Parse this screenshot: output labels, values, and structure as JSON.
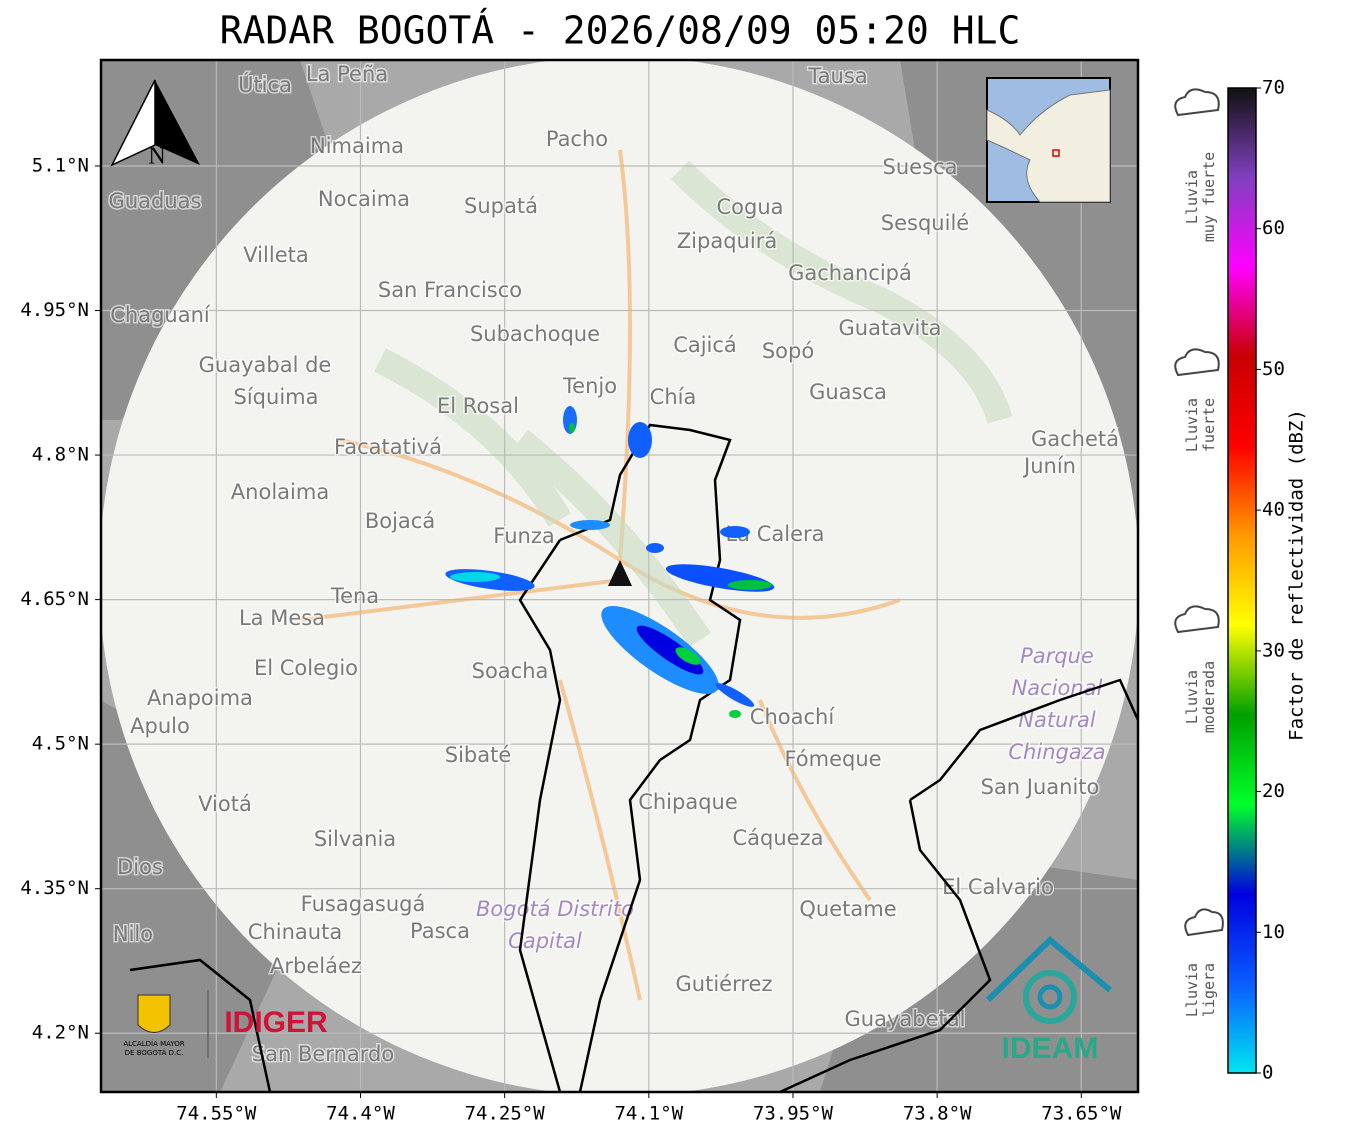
{
  "title": "RADAR BOGOTÁ - 2026/08/09 05:20 HLC",
  "map": {
    "xlim": [
      -74.67,
      -73.591
    ],
    "ylim": [
      4.139,
      5.21
    ],
    "grid": true,
    "xticks": [
      {
        "value": -74.55,
        "label": "74.55°W"
      },
      {
        "value": -74.4,
        "label": "74.4°W"
      },
      {
        "value": -74.25,
        "label": "74.25°W"
      },
      {
        "value": -74.1,
        "label": "74.1°W"
      },
      {
        "value": -73.95,
        "label": "73.95°W"
      },
      {
        "value": -73.8,
        "label": "73.8°W"
      },
      {
        "value": -73.65,
        "label": "73.65°W"
      }
    ],
    "yticks": [
      {
        "value": 5.1,
        "label": "5.1°N"
      },
      {
        "value": 4.95,
        "label": "4.95°N"
      },
      {
        "value": 4.8,
        "label": "4.8°N"
      },
      {
        "value": 4.65,
        "label": "4.65°N"
      },
      {
        "value": 4.5,
        "label": "4.5°N"
      },
      {
        "value": 4.35,
        "label": "4.35°N"
      },
      {
        "value": 4.2,
        "label": "4.2°N"
      }
    ],
    "compass": "N",
    "places": [
      "La Peña",
      "Útica",
      "Tausa",
      "Pacho",
      "Nimaima",
      "Guaduas",
      "Nocaima",
      "Supatá",
      "Cogua",
      "Suesca",
      "Sesquilé",
      "Villeta",
      "Zipaquirá",
      "Gachancipá",
      "San Francisco",
      "Chaguaní",
      "Guatavita",
      "Subachoque",
      "Cajicá",
      "Sopó",
      "Guayabal de",
      "Síquima",
      "Tenjo",
      "Chía",
      "Guasca",
      "El Rosal",
      "Facatativá",
      "Gachetá",
      "Junín",
      "Anolaima",
      "Bojacá",
      "Funza",
      "La Calera",
      "Tena",
      "La Mesa",
      "Parque",
      "Nacional",
      "Natural",
      "Chingaza",
      "El Colegio",
      "Soacha",
      "Anapoima",
      "Apulo",
      "Choachí",
      "Sibaté",
      "Fómeque",
      "San Juanito",
      "Viotá",
      "Chipaque",
      "Silvania",
      "Cáqueza",
      "Dios",
      "El Calvario",
      "Fusagasugá",
      "Bogotá Distrito",
      "Capital",
      "Quetame",
      "Pasca",
      "Chinauta",
      "Nilo",
      "Arbeláez",
      "Gutiérrez",
      "Guayabetal",
      "San Bernardo"
    ]
  },
  "colorbar": {
    "label": "Factor de reflectividad (dBZ)",
    "lim": [
      0,
      70
    ],
    "ticks": [
      0,
      10,
      20,
      30,
      40,
      50,
      60,
      70
    ],
    "colors": [
      "#00e5f0",
      "#0a5cff",
      "#0000e0",
      "#00ff2a",
      "#00a000",
      "#ffff00",
      "#ff9900",
      "#ff0000",
      "#c80000",
      "#ff00ff",
      "#8040c0",
      "#111111"
    ]
  },
  "intensity_labels": [
    [
      "Lluvia",
      "muy fuerte"
    ],
    [
      "Lluvia",
      "fuerte"
    ],
    [
      "Lluvia",
      "moderada"
    ],
    [
      "Lluvia",
      "ligera"
    ]
  ],
  "logos": {
    "alcaldia": [
      "ALCALDÍA MAYOR",
      "DE BOGOTÁ D.C."
    ],
    "idiger": "IDIGER",
    "ideam": "IDEAM"
  }
}
